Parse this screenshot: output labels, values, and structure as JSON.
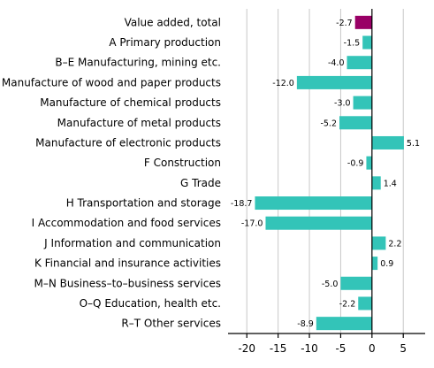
{
  "chart_data": {
    "type": "bar",
    "orientation": "horizontal",
    "categories": [
      "Value added, total",
      "A Primary production",
      "B–E Manufacturing, mining etc.",
      "Manufacture of wood and paper products",
      "Manufacture of chemical products",
      "Manufacture of metal products",
      "Manufacture of electronic products",
      "F Construction",
      "G Trade",
      "H Transportation and storage",
      "I Accommodation and food services",
      "J Information and communication",
      "K Financial and insurance activities",
      "M–N Business–to–business services",
      "O–Q Education, health etc.",
      "R–T Other services"
    ],
    "values": [
      -2.7,
      -1.5,
      -4.0,
      -12.0,
      -3.0,
      -5.2,
      5.1,
      -0.9,
      1.4,
      -18.7,
      -17.0,
      2.2,
      0.9,
      -5.0,
      -2.2,
      -8.9
    ],
    "value_labels": [
      "-2.7",
      "-1.5",
      "-4.0",
      "-12.0",
      "-3.0",
      "-5.2",
      "5.1",
      "-0.9",
      "1.4",
      "-18.7",
      "-17.0",
      "2.2",
      "0.9",
      "-5.0",
      "-2.2",
      "-8.9"
    ],
    "xlim": [
      -23,
      8.5
    ],
    "x_ticks": [
      -20,
      -15,
      -10,
      -5,
      0,
      5
    ],
    "x_tick_labels": [
      "-20",
      "-15",
      "-10",
      "-5",
      "0",
      "5"
    ],
    "grid": true,
    "title": "",
    "xlabel": "",
    "ylabel": "",
    "colors": {
      "highlight": "#990066",
      "bar": "#33c4b8",
      "grid": "#c8c8c8",
      "axis": "#000000"
    },
    "highlight_index": 0
  }
}
